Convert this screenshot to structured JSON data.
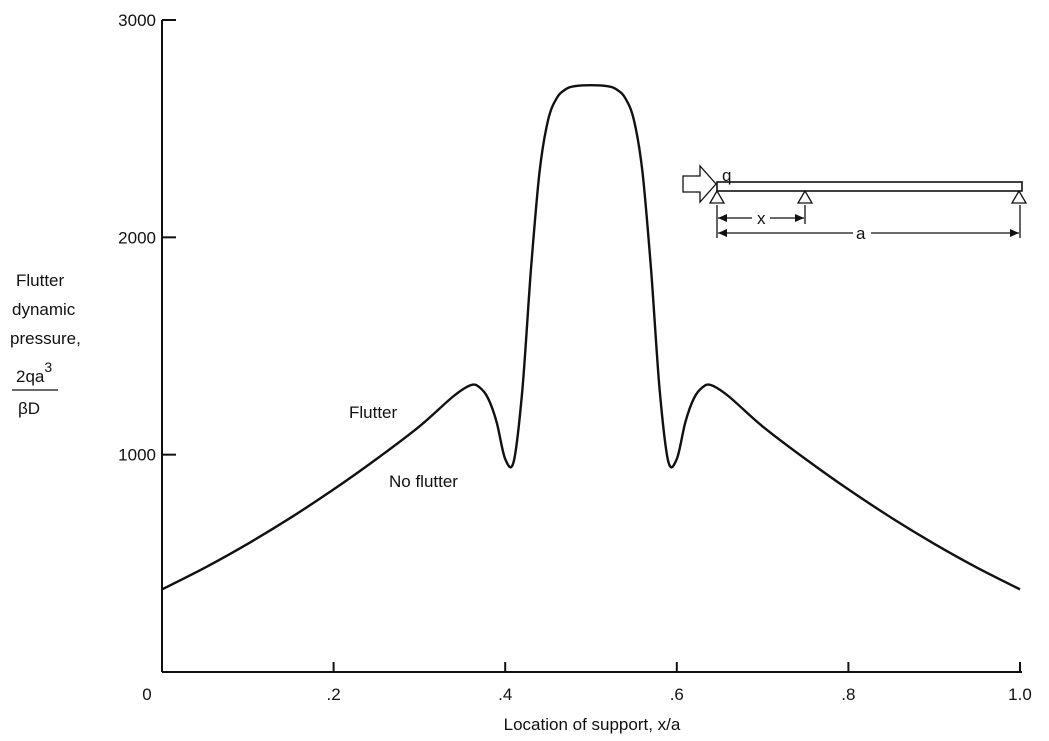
{
  "chart_data": {
    "type": "line",
    "xlabel": "Location of support, x/a",
    "ylabel_lines": [
      "Flutter",
      "dynamic",
      "pressure,"
    ],
    "ylabel_fraction": {
      "numerator": "2qa",
      "exponent": "3",
      "denominator": "βD"
    },
    "xlim": [
      0,
      1.0
    ],
    "ylim": [
      0,
      3000
    ],
    "x_ticks": [
      0,
      0.2,
      0.4,
      0.6,
      0.8,
      1.0
    ],
    "x_tick_labels": [
      "0",
      ".2",
      ".4",
      ".6",
      ".8",
      "1.0"
    ],
    "y_ticks": [
      1000,
      2000,
      3000
    ],
    "y_tick_labels": [
      "1000",
      "2000",
      "3000"
    ],
    "grid": false,
    "legend": "none",
    "series": [
      {
        "x": [
          0,
          0.05,
          0.1,
          0.15,
          0.2,
          0.25,
          0.3,
          0.34,
          0.36,
          0.37,
          0.38,
          0.39,
          0.4,
          0.41,
          0.42,
          0.43,
          0.44,
          0.45,
          0.46,
          0.47,
          0.48,
          0.5,
          0.52,
          0.53,
          0.54,
          0.55,
          0.56,
          0.57,
          0.58,
          0.59,
          0.6,
          0.61,
          0.62,
          0.63,
          0.64,
          0.66,
          0.7,
          0.75,
          0.8,
          0.85,
          0.9,
          0.95,
          1.0
        ],
        "y": [
          380,
          480,
          590,
          710,
          840,
          980,
          1130,
          1270,
          1320,
          1310,
          1260,
          1150,
          980,
          970,
          1300,
          1850,
          2300,
          2540,
          2640,
          2680,
          2695,
          2700,
          2695,
          2680,
          2640,
          2540,
          2300,
          1850,
          1300,
          970,
          980,
          1150,
          1260,
          1310,
          1320,
          1270,
          1130,
          980,
          840,
          710,
          590,
          480,
          380
        ]
      }
    ],
    "annotations": [
      "Flutter",
      "No flutter"
    ]
  },
  "inset": {
    "load_label": "q",
    "x_label": "x",
    "a_label": "a"
  }
}
